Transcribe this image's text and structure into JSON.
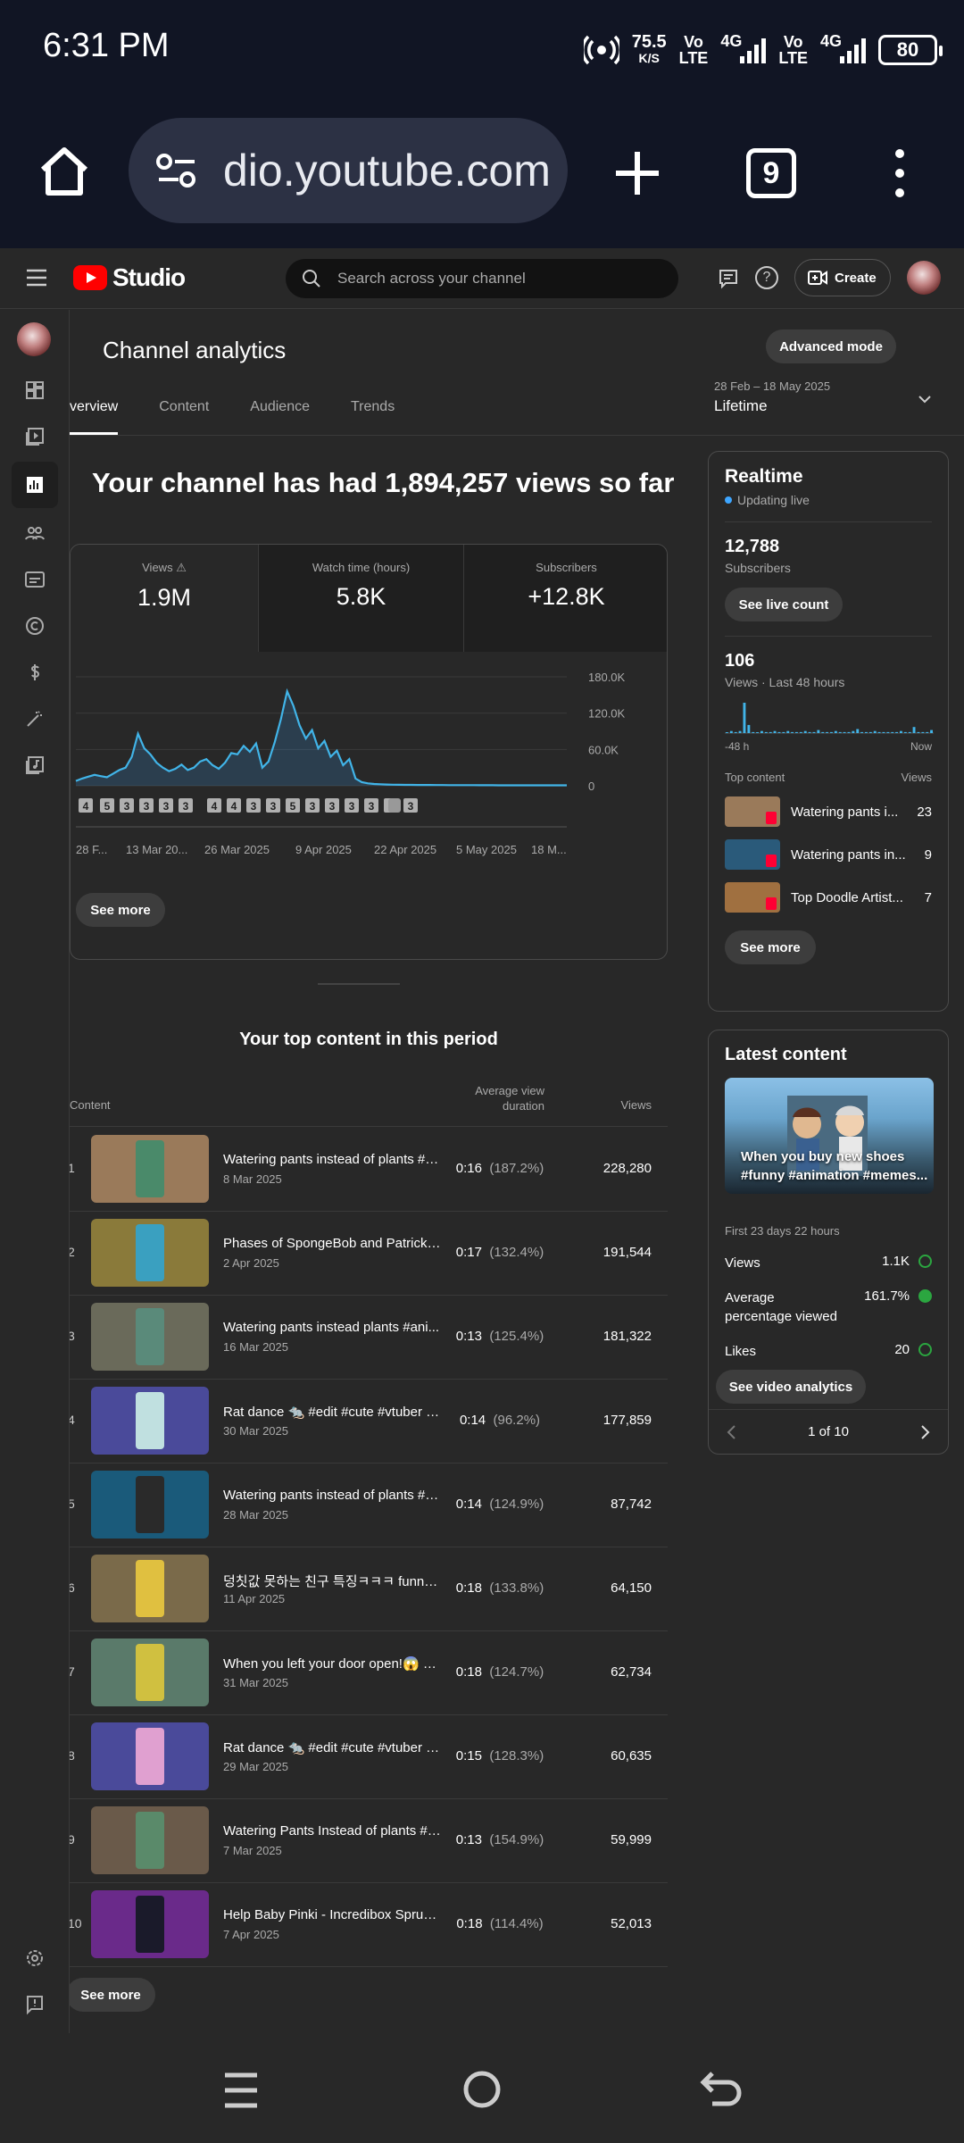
{
  "status": {
    "time": "6:31 PM",
    "speed_top": "75.5",
    "speed_unit": "K/S",
    "volte": "Vo",
    "lte": "LTE",
    "net1": "4G",
    "net2": "4G",
    "battery": "80"
  },
  "browser": {
    "url": "dio.youtube.com",
    "tab_count": "9"
  },
  "header": {
    "logo": "Studio",
    "search_placeholder": "Search across your channel",
    "create_label": "Create"
  },
  "page": {
    "title": "Channel analytics",
    "advanced_mode": "Advanced mode",
    "tabs": [
      "verview",
      "Content",
      "Audience",
      "Trends"
    ],
    "date_range": "28 Feb – 18 May 2025",
    "date_label": "Lifetime",
    "headline": "Your channel has had 1,894,257 views so far"
  },
  "metrics": [
    {
      "label": "Views",
      "value": "1.9M"
    },
    {
      "label": "Watch time (hours)",
      "value": "5.8K"
    },
    {
      "label": "Subscribers",
      "value": "+12.8K"
    }
  ],
  "chart_data": {
    "type": "area",
    "ylim": [
      0,
      180000
    ],
    "yticks": [
      "180.0K",
      "120.0K",
      "60.0K",
      "0"
    ],
    "ytick_values": [
      180000,
      120000,
      60000,
      0
    ],
    "xticks": [
      "28 F...",
      "13 Mar 20...",
      "26 Mar 2025",
      "9 Apr 2025",
      "22 Apr 2025",
      "5 May 2025",
      "18 M..."
    ],
    "values": [
      8000,
      12000,
      15000,
      18000,
      16000,
      14000,
      20000,
      26000,
      30000,
      48000,
      86000,
      62000,
      52000,
      38000,
      30000,
      24000,
      28000,
      35000,
      26000,
      30000,
      40000,
      44000,
      34000,
      28000,
      38000,
      54000,
      52000,
      66000,
      56000,
      70000,
      30000,
      40000,
      72000,
      110000,
      156000,
      132000,
      100000,
      78000,
      92000,
      62000,
      74000,
      48000,
      58000,
      34000,
      44000,
      12000,
      6000,
      4000,
      3000,
      2500,
      2000,
      1800,
      1600,
      1500,
      1500,
      1400,
      1300,
      1300,
      1200,
      1200,
      1100,
      1100,
      1000,
      1000,
      1000,
      900,
      900,
      900,
      800,
      800,
      800,
      800,
      800,
      800,
      800,
      800,
      800,
      800,
      700,
      700
    ],
    "markers": [
      "4",
      "5",
      "3",
      "3",
      "3",
      "3",
      "4",
      "4",
      "3",
      "3",
      "5",
      "3",
      "3",
      "3",
      "3",
      "3"
    ],
    "marker_last": "3"
  },
  "chart_see_more": "See more",
  "top_content": {
    "title": "Your top content in this period",
    "col_content": "Content",
    "col_avd": "Average view duration",
    "col_views": "Views",
    "rows": [
      {
        "rank": "1",
        "title": "Watering pants instead of plants #a...",
        "date": "8 Mar 2025",
        "avd": "0:16",
        "pct": "(187.2%)",
        "views": "228,280",
        "bg": "#9a7a5a",
        "ph": "#4a8a6a"
      },
      {
        "rank": "2",
        "title": "Phases of SpongeBob and Patrick #...",
        "date": "2 Apr 2025",
        "avd": "0:17",
        "pct": "(132.4%)",
        "views": "191,544",
        "bg": "#8a7a3a",
        "ph": "#3aa0c0"
      },
      {
        "rank": "3",
        "title": "Watering pants instead plants #ani...",
        "date": "16 Mar 2025",
        "avd": "0:13",
        "pct": "(125.4%)",
        "views": "181,322",
        "bg": "#6a6a5a",
        "ph": "#5a8a7a"
      },
      {
        "rank": "4",
        "title": "Rat dance 🐀 #edit #cute #vtuber #...",
        "date": "30 Mar 2025",
        "avd": "0:14",
        "pct": "(96.2%)",
        "views": "177,859",
        "bg": "#4a4a9a",
        "ph": "#c0e0e0"
      },
      {
        "rank": "5",
        "title": "Watering pants instead of plants #b...",
        "date": "28 Mar 2025",
        "avd": "0:14",
        "pct": "(124.9%)",
        "views": "87,742",
        "bg": "#1a5a7a",
        "ph": "#2a2a2a"
      },
      {
        "rank": "6",
        "title": "덩칫값 못하는 친구 특징ㅋㅋㅋ funny ...",
        "date": "11 Apr 2025",
        "avd": "0:18",
        "pct": "(133.8%)",
        "views": "64,150",
        "bg": "#7a6a4a",
        "ph": "#e0c040"
      },
      {
        "rank": "7",
        "title": "When you left your door open!😱 #d...",
        "date": "31 Mar 2025",
        "avd": "0:18",
        "pct": "(124.7%)",
        "views": "62,734",
        "bg": "#5a7a6a",
        "ph": "#d0c040"
      },
      {
        "rank": "8",
        "title": "Rat dance 🐀 #edit #cute #vtuber #...",
        "date": "29 Mar 2025",
        "avd": "0:15",
        "pct": "(128.3%)",
        "views": "60,635",
        "bg": "#4a4a9a",
        "ph": "#e0a0d0"
      },
      {
        "rank": "9",
        "title": "Watering Pants Instead of plants #a...",
        "date": "7 Mar 2025",
        "avd": "0:13",
        "pct": "(154.9%)",
        "views": "59,999",
        "bg": "#6a5a4a",
        "ph": "#5a8a6a"
      },
      {
        "rank": "10",
        "title": "Help Baby Pinki - Incredibox Sprunki...",
        "date": "7 Apr 2025",
        "avd": "0:18",
        "pct": "(114.4%)",
        "views": "52,013",
        "bg": "#6a2a8a",
        "ph": "#1a1a2a"
      }
    ],
    "see_more": "See more"
  },
  "realtime": {
    "title": "Realtime",
    "live": "Updating live",
    "subs": "12,788",
    "subs_label": "Subscribers",
    "live_count": "See live count",
    "views": "106",
    "views_label": "Views · Last 48 hours",
    "axis_left": "-48 h",
    "axis_right": "Now",
    "bars": [
      0,
      2,
      1,
      2,
      30,
      8,
      1,
      0,
      2,
      1,
      1,
      2,
      1,
      1,
      2,
      1,
      1,
      1,
      2,
      1,
      1,
      3,
      1,
      1,
      1,
      2,
      1,
      1,
      1,
      2,
      4,
      1,
      1,
      1,
      2,
      1,
      1,
      1,
      1,
      1,
      2,
      1,
      1,
      6,
      1,
      1,
      1,
      3
    ],
    "top_head": "Top content",
    "top_views_head": "Views",
    "items": [
      {
        "name": "Watering pants i...",
        "views": "23",
        "bg": "#9a7a5a"
      },
      {
        "name": "Watering pants in...",
        "views": "9",
        "bg": "#2a5a7a"
      },
      {
        "name": "Top Doodle Artist...",
        "views": "7",
        "bg": "#a07040"
      }
    ],
    "see_more": "See more"
  },
  "latest": {
    "title": "Latest content",
    "thumb_text": "When you buy new shoes #funny #animation #memes...",
    "period": "First 23 days 22 hours",
    "stats": [
      {
        "label": "Views",
        "value": "1.1K",
        "icon": "check-circle-icon"
      },
      {
        "label": "Average percentage viewed",
        "value": "161.7%",
        "icon": "up-arrow-icon"
      },
      {
        "label": "Likes",
        "value": "20",
        "icon": "check-circle-icon"
      }
    ],
    "analytics_btn": "See video analytics",
    "pager": "1 of 10"
  }
}
